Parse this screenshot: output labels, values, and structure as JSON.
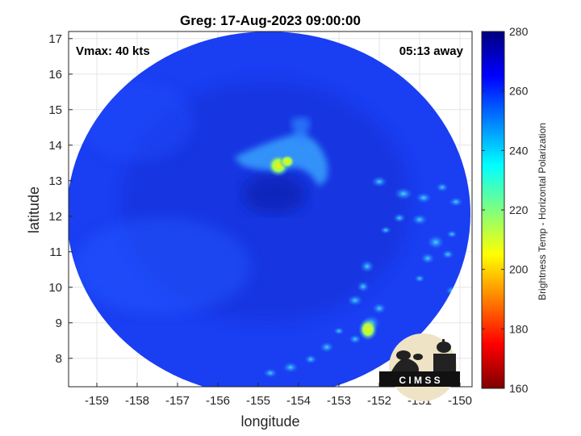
{
  "title": "Greg: 17-Aug-2023 09:00:00",
  "vmax_label": "Vmax: 40 kts",
  "away_label": "05:13 away",
  "xlabel": "longitude",
  "ylabel": "latitude",
  "colorbar_label": "Brightness Temp - Horizontal Polarization",
  "logo_text": "C I M S S",
  "x_ticks": [
    "-159",
    "-158",
    "-157",
    "-156",
    "-155",
    "-154",
    "-153",
    "-152",
    "-151",
    "-150"
  ],
  "y_ticks": [
    "17",
    "16",
    "15",
    "14",
    "13",
    "12",
    "11",
    "10",
    "9",
    "8"
  ],
  "colorbar_ticks": [
    "280",
    "260",
    "240",
    "220",
    "200",
    "180",
    "160"
  ],
  "colormap": [
    "#7f0000",
    "#ff0000",
    "#ffff00",
    "#00ffff",
    "#0000ff",
    "#00007f"
  ],
  "map_data": {
    "type": "heatmap",
    "x_range": [
      -159.7,
      -149.7
    ],
    "y_range": [
      7.2,
      17.2
    ],
    "color_range": [
      160,
      280
    ],
    "grid": true,
    "scene_center": [
      -154.8,
      12.2
    ],
    "background_value": 266,
    "features": [
      {
        "name": "convective-core",
        "lon": -154.3,
        "lat": 13.45,
        "value": 205
      },
      {
        "name": "convective-core-2",
        "lon": -154.0,
        "lat": 13.5,
        "value": 212
      },
      {
        "name": "convective-band",
        "lon": -154.1,
        "lat": 13.6,
        "value": 240
      },
      {
        "name": "southeast-cell",
        "lon": -152.0,
        "lat": 8.8,
        "value": 212
      },
      {
        "name": "southeast-cells",
        "lon": -152.5,
        "lat": 9.6,
        "value": 246
      },
      {
        "name": "east-cells",
        "lon": -150.5,
        "lat": 12.2,
        "value": 250
      },
      {
        "name": "east-cells-2",
        "lon": -150.6,
        "lat": 10.8,
        "value": 248
      },
      {
        "name": "south-cells",
        "lon": -154.0,
        "lat": 8.0,
        "value": 250
      }
    ]
  }
}
